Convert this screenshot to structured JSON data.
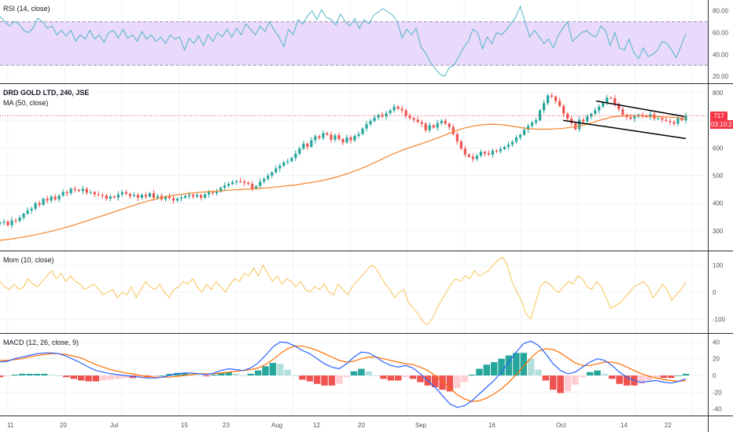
{
  "colors": {
    "rsi_line": "#4fb6c9",
    "rsi_band": "#e9d9fb",
    "ma_line": "#f5842a",
    "bull": "#26a69a",
    "bear": "#ef5350",
    "mom_line": "#f7c454",
    "macd_line": "#2962ff",
    "signal_line": "#ff6d00",
    "hist_pos": "#26a69a",
    "hist_pos_light": "#b2dfdb",
    "hist_neg": "#ef5350",
    "hist_neg_light": "#ffcdd2",
    "price_line": "#f23645",
    "channel": "#000000"
  },
  "panes": {
    "rsi": {
      "label": "RSI (14, close)"
    },
    "price": {
      "title": "DRD GOLD LTD, 240, JSE",
      "ma_label": "MA (50, close)",
      "last_price": "717",
      "countdown": "03:10:2"
    },
    "mom": {
      "label": "Mom (10, close)"
    },
    "macd": {
      "label": "MACD (12, 26, close, 9)"
    }
  },
  "chart_data": [
    {
      "type": "line",
      "name": "RSI",
      "title": "RSI (14, close)",
      "ylim": [
        15,
        87
      ],
      "yticks": [
        "80.00",
        "60.00",
        "40.00",
        "20.00"
      ],
      "ytick_values": [
        80,
        60,
        40,
        20
      ],
      "band": [
        30,
        70
      ],
      "x": [
        0,
        6,
        12,
        18,
        24,
        30,
        36,
        42,
        48,
        54,
        60,
        66,
        72,
        78,
        84,
        90,
        96,
        102,
        108,
        114,
        120,
        126,
        132,
        138,
        144,
        150,
        156,
        162,
        168,
        174,
        180,
        186,
        192,
        198,
        204,
        210,
        216,
        222,
        228,
        234,
        240,
        246,
        252,
        258,
        264,
        270,
        276,
        282,
        288,
        294,
        300,
        306,
        312,
        318,
        324,
        330,
        336,
        342,
        348,
        354,
        360,
        366,
        372,
        378,
        384,
        390,
        396,
        402,
        408,
        414,
        420,
        426,
        432,
        438,
        444,
        450,
        456,
        462,
        468,
        474,
        480,
        486,
        492,
        498,
        504,
        510,
        516,
        522,
        528,
        534,
        540,
        546,
        552,
        558,
        564,
        570,
        576,
        582,
        588,
        594,
        600,
        606,
        612,
        618,
        624,
        630,
        636,
        642,
        648,
        654,
        660,
        666,
        672,
        678,
        684,
        690,
        696,
        702,
        708,
        714,
        720,
        726,
        732,
        738,
        744,
        750,
        756,
        762,
        768,
        774,
        780,
        786,
        792,
        798,
        804,
        810,
        816,
        822,
        828,
        834,
        840,
        846,
        852,
        858,
        864,
        870
      ],
      "values": [
        75,
        70,
        66,
        70,
        68,
        62,
        60,
        64,
        73,
        70,
        64,
        66,
        58,
        62,
        57,
        62,
        52,
        58,
        54,
        62,
        54,
        58,
        51,
        60,
        62,
        55,
        63,
        55,
        58,
        52,
        61,
        54,
        58,
        52,
        56,
        50,
        58,
        54,
        56,
        44,
        55,
        50,
        57,
        48,
        58,
        52,
        60,
        56,
        63,
        56,
        64,
        58,
        68,
        63,
        58,
        66,
        61,
        70,
        62,
        56,
        47,
        63,
        58,
        72,
        68,
        75,
        80,
        72,
        81,
        74,
        72,
        67,
        77,
        70,
        66,
        73,
        64,
        72,
        68,
        76,
        79,
        82,
        79,
        76,
        70,
        55,
        63,
        58,
        64,
        47,
        41,
        33,
        27,
        22,
        20,
        28,
        30,
        38,
        46,
        52,
        63,
        60,
        45,
        56,
        50,
        60,
        58,
        62,
        68,
        74,
        84,
        70,
        56,
        62,
        56,
        50,
        54,
        46,
        57,
        64,
        70,
        52,
        56,
        60,
        62,
        58,
        56,
        66,
        62,
        48,
        60,
        46,
        44,
        54,
        42,
        36,
        46,
        38,
        40,
        44,
        52,
        50,
        44,
        37,
        48,
        59
      ]
    },
    {
      "type": "candlestick",
      "name": "DRD GOLD LTD, 240, JSE",
      "title": "DRD GOLD LTD, 240, JSE",
      "ylim": [
        240,
        820
      ],
      "yticks": [
        "800",
        "700",
        "600",
        "500",
        "400",
        "300"
      ],
      "ytick_values": [
        800,
        700,
        600,
        500,
        400,
        300
      ],
      "x_labels": [
        "11",
        "20",
        "Jul",
        "15",
        "23",
        "Aug",
        "12",
        "20",
        "Sep",
        "16",
        "Oct",
        "14",
        "22"
      ],
      "close": [
        330,
        334,
        320,
        338,
        336,
        348,
        362,
        374,
        380,
        400,
        394,
        416,
        410,
        424,
        414,
        428,
        440,
        436,
        452,
        448,
        444,
        452,
        438,
        440,
        432,
        430,
        428,
        416,
        424,
        420,
        432,
        440,
        434,
        426,
        430,
        420,
        430,
        424,
        436,
        420,
        426,
        414,
        424,
        418,
        410,
        416,
        420,
        426,
        430,
        424,
        430,
        420,
        432,
        440,
        436,
        442,
        456,
        464,
        470,
        476,
        480,
        478,
        474,
        470,
        452,
        462,
        478,
        488,
        500,
        512,
        526,
        536,
        548,
        552,
        564,
        580,
        598,
        616,
        604,
        628,
        642,
        636,
        654,
        648,
        630,
        646,
        632,
        620,
        638,
        628,
        644,
        650,
        670,
        686,
        698,
        710,
        720,
        714,
        726,
        736,
        750,
        742,
        736,
        716,
        708,
        702,
        694,
        688,
        664,
        682,
        674,
        690,
        698,
        688,
        676,
        650,
        624,
        598,
        576,
        568,
        560,
        572,
        586,
        580,
        576,
        590,
        588,
        596,
        604,
        612,
        622,
        638,
        648,
        666,
        680,
        692,
        700,
        736,
        762,
        790,
        786,
        770,
        752,
        724,
        706,
        690,
        668,
        702,
        696,
        714,
        724,
        736,
        750,
        764,
        782,
        780,
        760,
        740,
        720,
        712,
        706,
        714,
        720,
        716,
        712,
        722,
        706,
        708,
        702,
        698,
        694,
        688,
        708,
        700,
        717
      ],
      "ma_label": "MA (50, close)",
      "ma_values": [
        266,
        270,
        276,
        283,
        291,
        300,
        310,
        321,
        333,
        346,
        358,
        371,
        384,
        396,
        408,
        418,
        426,
        432,
        436,
        440,
        443,
        445,
        448,
        450,
        452,
        455,
        458,
        462,
        466,
        472,
        478,
        486,
        496,
        508,
        522,
        538,
        556,
        574,
        590,
        604,
        616,
        630,
        644,
        660,
        672,
        680,
        685,
        686,
        682,
        676,
        670,
        668,
        668,
        670,
        674,
        680,
        690,
        702,
        712,
        716,
        717,
        716,
        714,
        712,
        710,
        707
      ],
      "last_price": "717",
      "channel_upper": [
        [
          758,
          770
        ],
        [
          870,
          714
        ]
      ],
      "channel_lower": [
        [
          716,
          700
        ],
        [
          872,
          634
        ]
      ]
    },
    {
      "type": "line",
      "name": "Mom",
      "title": "Mom (10, close)",
      "ylim": [
        -140,
        140
      ],
      "yticks": [
        "100",
        "0",
        "-100"
      ],
      "ytick_values": [
        100,
        0,
        -100
      ],
      "values": [
        40,
        20,
        10,
        30,
        10,
        20,
        50,
        30,
        20,
        40,
        60,
        80,
        50,
        70,
        40,
        60,
        40,
        30,
        10,
        20,
        30,
        10,
        -10,
        0,
        10,
        -20,
        0,
        -10,
        20,
        -20,
        10,
        40,
        20,
        10,
        30,
        0,
        -20,
        10,
        20,
        40,
        30,
        50,
        20,
        0,
        30,
        10,
        40,
        20,
        0,
        30,
        50,
        40,
        70,
        60,
        90,
        60,
        100,
        70,
        40,
        60,
        30,
        50,
        40,
        20,
        40,
        10,
        0,
        20,
        10,
        30,
        0,
        -10,
        30,
        10,
        -10,
        20,
        40,
        60,
        80,
        100,
        90,
        60,
        30,
        10,
        -20,
        0,
        10,
        -40,
        -60,
        -80,
        -110,
        -120,
        -100,
        -60,
        -30,
        0,
        30,
        50,
        40,
        60,
        50,
        80,
        60,
        70,
        80,
        100,
        120,
        130,
        100,
        40,
        0,
        -30,
        -80,
        -100,
        -40,
        20,
        40,
        30,
        10,
        0,
        20,
        40,
        30,
        60,
        50,
        20,
        10,
        40,
        20,
        -20,
        -60,
        -50,
        -40,
        -20,
        0,
        20,
        30,
        40,
        20,
        -20,
        0,
        30,
        10,
        -30,
        -10,
        10,
        40
      ]
    },
    {
      "type": "line",
      "name": "MACD",
      "title": "MACD (12, 26, close, 9)",
      "ylim": [
        -44,
        46
      ],
      "yticks": [
        "40",
        "20",
        "0",
        "-20",
        "-40"
      ],
      "ytick_values": [
        40,
        20,
        0,
        -20,
        -40
      ],
      "series": [
        {
          "name": "MACD",
          "values": [
            16,
            17,
            20,
            22,
            24,
            26,
            27,
            27,
            26,
            23,
            19,
            15,
            10,
            6,
            4,
            2,
            1,
            0,
            -1,
            -2,
            -3,
            -3,
            -2,
            0,
            2,
            3,
            3,
            2,
            1,
            3,
            6,
            8,
            7,
            6,
            9,
            15,
            24,
            34,
            40,
            39,
            35,
            30,
            26,
            20,
            14,
            10,
            8,
            14,
            22,
            28,
            27,
            22,
            16,
            12,
            10,
            12,
            9,
            2,
            -6,
            -14,
            -24,
            -34,
            -38,
            -36,
            -30,
            -22,
            -14,
            -6,
            4,
            16,
            28,
            38,
            41,
            36,
            26,
            14,
            6,
            2,
            4,
            10,
            16,
            20,
            18,
            12,
            4,
            -2,
            -6,
            -8,
            -7,
            -6,
            -8,
            -9,
            -7,
            -4
          ]
        },
        {
          "name": "Signal",
          "values": [
            18,
            18,
            19,
            20,
            22,
            24,
            25,
            26,
            26,
            25,
            23,
            21,
            17,
            13,
            10,
            7,
            5,
            3,
            2,
            0,
            -1,
            -2,
            -2,
            -2,
            -1,
            0,
            1,
            2,
            2,
            2,
            3,
            4,
            5,
            6,
            7,
            9,
            13,
            19,
            26,
            32,
            35,
            35,
            33,
            30,
            26,
            22,
            18,
            16,
            17,
            20,
            22,
            22,
            20,
            18,
            16,
            14,
            13,
            10,
            6,
            0,
            -7,
            -15,
            -23,
            -28,
            -31,
            -30,
            -27,
            -22,
            -16,
            -8,
            1,
            11,
            21,
            29,
            32,
            31,
            27,
            21,
            15,
            12,
            12,
            14,
            16,
            16,
            14,
            10,
            6,
            2,
            -1,
            -3,
            -5,
            -6,
            -7,
            -6
          ]
        }
      ]
    }
  ],
  "labels": {
    "x_axis": [
      "11",
      "20",
      "Jul",
      "15",
      "23",
      "Aug",
      "12",
      "20",
      "Sep",
      "16",
      "Oct",
      "14",
      "22"
    ]
  }
}
